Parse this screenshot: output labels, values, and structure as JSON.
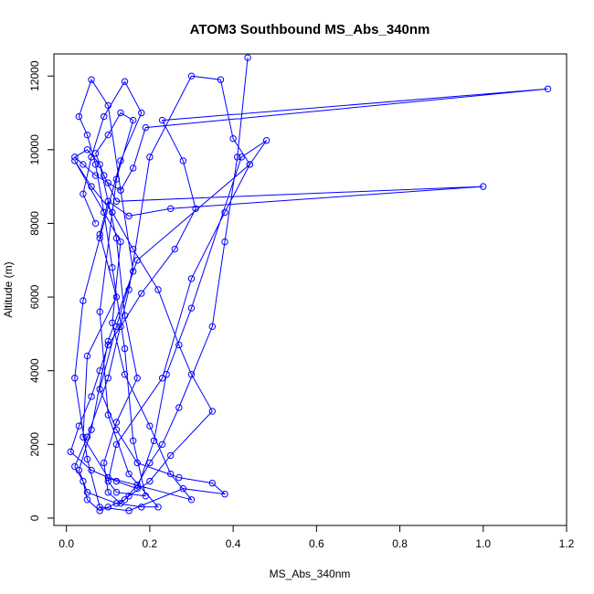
{
  "chart_data": {
    "type": "line",
    "title": "ATOM3 Southbound MS_Abs_340nm",
    "xlabel": "MS_Abs_340nm",
    "ylabel": "Altitude (m)",
    "xlim": [
      -0.03,
      1.2
    ],
    "ylim": [
      -200,
      12600
    ],
    "x_ticks": [
      0.0,
      0.2,
      0.4,
      0.6,
      0.8,
      1.0,
      1.2
    ],
    "x_tick_labels": [
      "0.0",
      "0.2",
      "0.4",
      "0.6",
      "0.8",
      "1.0",
      "1.2"
    ],
    "y_ticks": [
      0,
      2000,
      4000,
      6000,
      8000,
      10000,
      12000
    ],
    "y_tick_labels": [
      "0",
      "2000",
      "4000",
      "6000",
      "8000",
      "10000",
      "12000"
    ],
    "grid": false,
    "series": [
      {
        "color": "#0000ff",
        "marker": "open-circle",
        "x": [
          0.435,
          0.41,
          0.38,
          0.35,
          0.27,
          0.23,
          0.2,
          0.17,
          0.14,
          0.1,
          0.08,
          0.05,
          0.04,
          0.02,
          0.05,
          0.1,
          0.15,
          0.2,
          0.3,
          0.37,
          0.4,
          0.44,
          0.17,
          0.1,
          0.06,
          0.03,
          0.05,
          0.12,
          0.18,
          0.22,
          0.15,
          0.1,
          0.08,
          0.12,
          0.16,
          0.13,
          0.1,
          0.07,
          0.09,
          0.12,
          1.0,
          0.25,
          0.15,
          0.1,
          0.08,
          0.12,
          0.05,
          0.04,
          0.1,
          0.3,
          0.25,
          0.2,
          0.14,
          0.11,
          0.13,
          0.02,
          0.06,
          0.11,
          0.16,
          0.22,
          0.27,
          0.3,
          0.35,
          0.25,
          0.2,
          0.15,
          0.13,
          0.1,
          0.09,
          0.12,
          0.17,
          0.14,
          0.12,
          0.08,
          0.05,
          0.02,
          0.04,
          0.07,
          0.1,
          0.13,
          0.16,
          0.19,
          1.155,
          0.23,
          0.28,
          0.31,
          0.26,
          0.18,
          0.13,
          0.1,
          0.08,
          0.06,
          0.03,
          0.01,
          0.06,
          0.12,
          0.17,
          0.21,
          0.24,
          0.3,
          0.42,
          0.48,
          0.44,
          0.38,
          0.3,
          0.23,
          0.12,
          0.1,
          0.12,
          0.19,
          0.16,
          0.14,
          0.11,
          0.09,
          0.07,
          0.05,
          0.03,
          0.06,
          0.1,
          0.13,
          0.16,
          0.12,
          0.08,
          0.12,
          0.17,
          0.27,
          0.35,
          0.38,
          0.28,
          0.15,
          0.08,
          0.05,
          0.02,
          0.04,
          0.08,
          0.13,
          0.18,
          0.14,
          0.09,
          0.06,
          0.04,
          0.07
        ],
        "y": [
          12500,
          9800,
          7500,
          5200,
          3000,
          2000,
          1500,
          900,
          500,
          300,
          200,
          500,
          1000,
          1400,
          2200,
          3800,
          6200,
          9800,
          12000,
          11900,
          10300,
          9600,
          7000,
          4800,
          2400,
          1300,
          700,
          400,
          300,
          300,
          1200,
          2800,
          5600,
          9200,
          10800,
          11000,
          10400,
          9900,
          9300,
          8600,
          9000,
          8400,
          8200,
          8600,
          7700,
          6000,
          4400,
          2200,
          1100,
          500,
          1200,
          2500,
          3900,
          5300,
          7500,
          9700,
          9000,
          8300,
          7300,
          6200,
          4700,
          3900,
          2900,
          1700,
          1000,
          600,
          400,
          700,
          1500,
          2600,
          3800,
          5500,
          7600,
          9600,
          10000,
          9800,
          9600,
          9300,
          9100,
          8900,
          9500,
          10600,
          11650,
          10800,
          9700,
          8400,
          7300,
          6100,
          5200,
          4700,
          4000,
          3300,
          2500,
          1800,
          1300,
          1000,
          800,
          2100,
          3900,
          5700,
          9800,
          10250,
          9600,
          8300,
          6500,
          3800,
          2000,
          1000,
          700,
          600,
          2100,
          4600,
          6800,
          8300,
          9600,
          10400,
          10900,
          11900,
          11200,
          8900,
          6700,
          5200,
          3500,
          2400,
          1500,
          1100,
          950,
          650,
          800,
          200,
          300,
          1600,
          3800,
          5900,
          7600,
          9700,
          11000,
          11850,
          10900,
          9800,
          8800,
          8000
        ]
      }
    ]
  }
}
